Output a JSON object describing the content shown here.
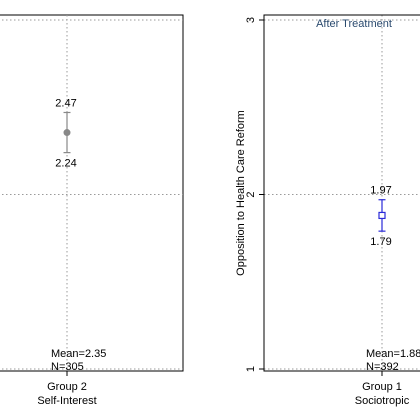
{
  "chart_data": [
    {
      "type": "scatter",
      "subtype": "point-with-error-bar",
      "title": "",
      "ylabel": "",
      "ylim": [
        1,
        3
      ],
      "grid": true,
      "grid_style": "dotted",
      "categories": [
        "Group 2\nSelf-Interest"
      ],
      "category_lines": [
        "Group 2",
        "Self-Interest"
      ],
      "points": [
        {
          "mean": 2.355,
          "upper": 2.47,
          "lower": 2.24,
          "upper_label": "2.47",
          "lower_label": "2.24",
          "annotation": [
            "Mean=2.35",
            "N=305"
          ],
          "marker": "filled-circle",
          "color": "#888888"
        }
      ]
    },
    {
      "type": "scatter",
      "subtype": "point-with-error-bar",
      "title": "After Treatment",
      "ylabel": "Opposition to Health Care Reform",
      "ylim": [
        1,
        3
      ],
      "yticks": [
        1,
        2,
        3
      ],
      "ytick_labels": [
        "1",
        "2",
        "3"
      ],
      "grid": true,
      "grid_style": "dotted",
      "categories": [
        "Group 1\nSociotropic"
      ],
      "category_lines": [
        "Group 1",
        "Sociotropic"
      ],
      "points": [
        {
          "mean": 1.88,
          "upper": 1.97,
          "lower": 1.79,
          "upper_label": "1.97",
          "lower_label": "1.79",
          "annotation": [
            "Mean=1.88",
            "N=392"
          ],
          "marker": "hollow-square",
          "color": "#2a2ad8"
        }
      ]
    }
  ],
  "colors": {
    "title": "#2a4a6e",
    "axis": "#000000",
    "grid": "#9a9a9a"
  }
}
